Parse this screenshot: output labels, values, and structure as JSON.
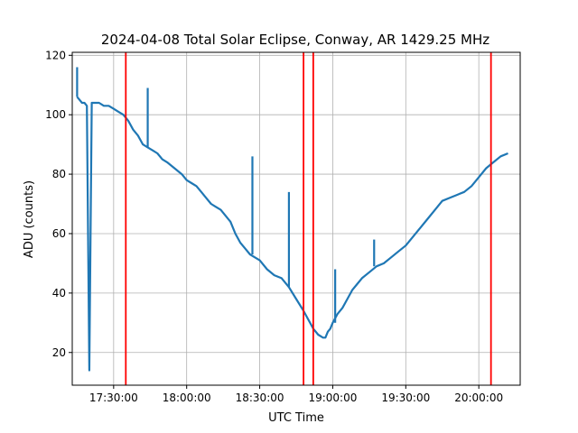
{
  "chart_data": {
    "type": "line",
    "title": "2024-04-08 Total Solar Eclipse, Conway, AR 1429.25 MHz",
    "xlabel": "UTC Time",
    "ylabel": "ADU (counts)",
    "xlim": [
      "17:13:00",
      "20:17:00"
    ],
    "ylim": [
      9,
      121
    ],
    "x_ticks": [
      "17:30:00",
      "18:00:00",
      "18:30:00",
      "19:00:00",
      "19:30:00",
      "20:00:00"
    ],
    "y_ticks": [
      20,
      40,
      60,
      80,
      100,
      120
    ],
    "grid": true,
    "line_color": "#1f77b4",
    "marker_color": "#ff0000",
    "series": [
      {
        "x": [
          "17:15:00",
          "17:16:00",
          "17:17:00",
          "17:18:00",
          "17:19:00",
          "17:20:00",
          "17:21:00",
          "17:22:00",
          "17:24:00",
          "17:26:00",
          "17:28:00",
          "17:30:00",
          "17:32:00",
          "17:34:00",
          "17:36:00",
          "17:38:00",
          "17:40:00",
          "17:42:00",
          "17:44:00",
          "17:46:00",
          "17:48:00",
          "17:50:00",
          "17:52:00",
          "17:55:00",
          "17:58:00",
          "18:00:00",
          "18:02:00",
          "18:04:00",
          "18:06:00",
          "18:08:00",
          "18:10:00",
          "18:12:00",
          "18:14:00",
          "18:16:00",
          "18:18:00",
          "18:20:00",
          "18:22:00",
          "18:24:00",
          "18:26:00",
          "18:28:00",
          "18:30:00",
          "18:33:00",
          "18:36:00",
          "18:39:00",
          "18:42:00",
          "18:45:00",
          "18:48:00",
          "18:50:00",
          "18:52:00",
          "18:54:00",
          "18:56:00",
          "18:57:00",
          "18:58:00",
          "18:59:00",
          "19:00:00",
          "19:02:00",
          "19:04:00",
          "19:06:00",
          "19:08:00",
          "19:10:00",
          "19:12:00",
          "19:15:00",
          "19:18:00",
          "19:21:00",
          "19:24:00",
          "19:27:00",
          "19:30:00",
          "19:33:00",
          "19:36:00",
          "19:39:00",
          "19:42:00",
          "19:45:00",
          "19:48:00",
          "19:51:00",
          "19:54:00",
          "19:57:00",
          "20:00:00",
          "20:03:00",
          "20:06:00",
          "20:09:00",
          "20:12:00"
        ],
        "y": [
          106,
          105,
          104,
          104,
          103,
          14,
          104,
          104,
          104,
          103,
          103,
          102,
          101,
          100,
          98,
          95,
          93,
          90,
          89,
          88,
          87,
          85,
          84,
          82,
          80,
          78,
          77,
          76,
          74,
          72,
          70,
          69,
          68,
          66,
          64,
          60,
          57,
          55,
          53,
          52,
          51,
          48,
          46,
          45,
          42,
          38,
          34,
          31,
          28,
          26,
          25,
          25,
          27,
          28,
          30,
          33,
          35,
          38,
          41,
          43,
          45,
          47,
          49,
          50,
          52,
          54,
          56,
          59,
          62,
          65,
          68,
          71,
          72,
          73,
          74,
          76,
          79,
          82,
          84,
          86,
          87
        ]
      }
    ],
    "event_times": [
      "17:35:00",
      "18:48:00",
      "18:52:00",
      "20:05:00"
    ],
    "spikes": [
      {
        "x": "17:15:00",
        "y": 116
      },
      {
        "x": "17:44:00",
        "y": 109
      },
      {
        "x": "18:27:00",
        "y": 86
      },
      {
        "x": "18:42:00",
        "y": 74
      },
      {
        "x": "19:01:00",
        "y": 48
      },
      {
        "x": "19:17:00",
        "y": 58
      }
    ]
  }
}
